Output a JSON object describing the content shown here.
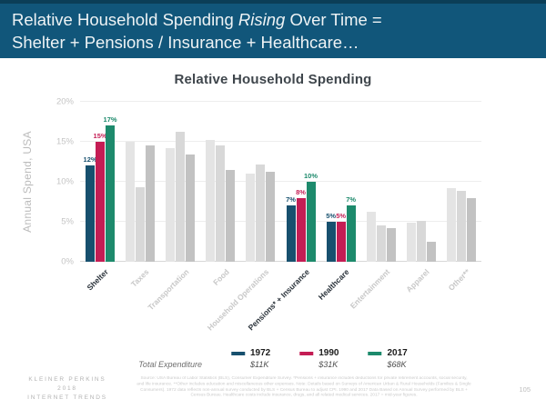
{
  "header": {
    "line1_pre": "Relative Household Spending ",
    "line1_italic": "Rising",
    "line1_post": " Over Time =",
    "line2": "Shelter + Pensions / Insurance + Healthcare…"
  },
  "chart_data": {
    "type": "bar",
    "title": "Relative Household Spending",
    "ylabel": "Annual Spend, USA",
    "ylim": [
      0,
      20
    ],
    "yticks": [
      {
        "label": "0%",
        "value": 0
      },
      {
        "label": "5%",
        "value": 5
      },
      {
        "label": "10%",
        "value": 10
      },
      {
        "label": "15%",
        "value": 15
      },
      {
        "label": "20%",
        "value": 20
      }
    ],
    "categories": [
      "Shelter",
      "Taxes",
      "Transportation",
      "Food",
      "Household Operations",
      "Pensions* + Insurance",
      "Healthcare",
      "Entertainment",
      "Apparel",
      "Other**"
    ],
    "highlighted": [
      true,
      false,
      false,
      false,
      false,
      true,
      true,
      false,
      false,
      false
    ],
    "series": [
      {
        "name": "1972",
        "total": "$11K",
        "color": "#17506e",
        "gray": "#e4e4e4",
        "values": [
          12,
          15,
          14.2,
          15.2,
          11,
          7,
          5,
          6.2,
          4.9,
          9.2
        ]
      },
      {
        "name": "1990",
        "total": "$31K",
        "color": "#c41d54",
        "gray": "#d8d8d8",
        "values": [
          15,
          9.3,
          16.3,
          14.5,
          12.2,
          8,
          5,
          4.5,
          5.1,
          8.9
        ]
      },
      {
        "name": "2017",
        "total": "$68K",
        "color": "#1d8a6c",
        "gray": "#c2c2c2",
        "values": [
          17,
          14.5,
          13.4,
          11.5,
          11.3,
          10,
          7,
          4.2,
          2.5,
          8
        ]
      }
    ],
    "legend_caption": "Total Expenditure",
    "grid": true,
    "legend_position": "bottom"
  },
  "footer": {
    "brand_line1": "KLEINER PERKINS",
    "brand_line2": "2018",
    "brand_line3": "INTERNET TRENDS",
    "source": "Source: USA Bureau of Labor Statistics (BLS), Consumer Expenditure Survey. *Pensions + insurance includes deductions for private retirement accounts, social security, and life insurance. **Other includes education and miscellaneous other expenses. Note: Details based on Surveys of American Urban & Rural Households (Families & Single Consumers). 1972 data reflects non-annual survey conducted by BLS + Census Bureau to adjust CPI. 1990 and 2017 Data Based on Annual Survey performed by BLS + Census Bureau. Healthcare costs include insurance, drugs, and all related medical services. 2017 = mid-year figures.",
    "page_number": "105"
  }
}
